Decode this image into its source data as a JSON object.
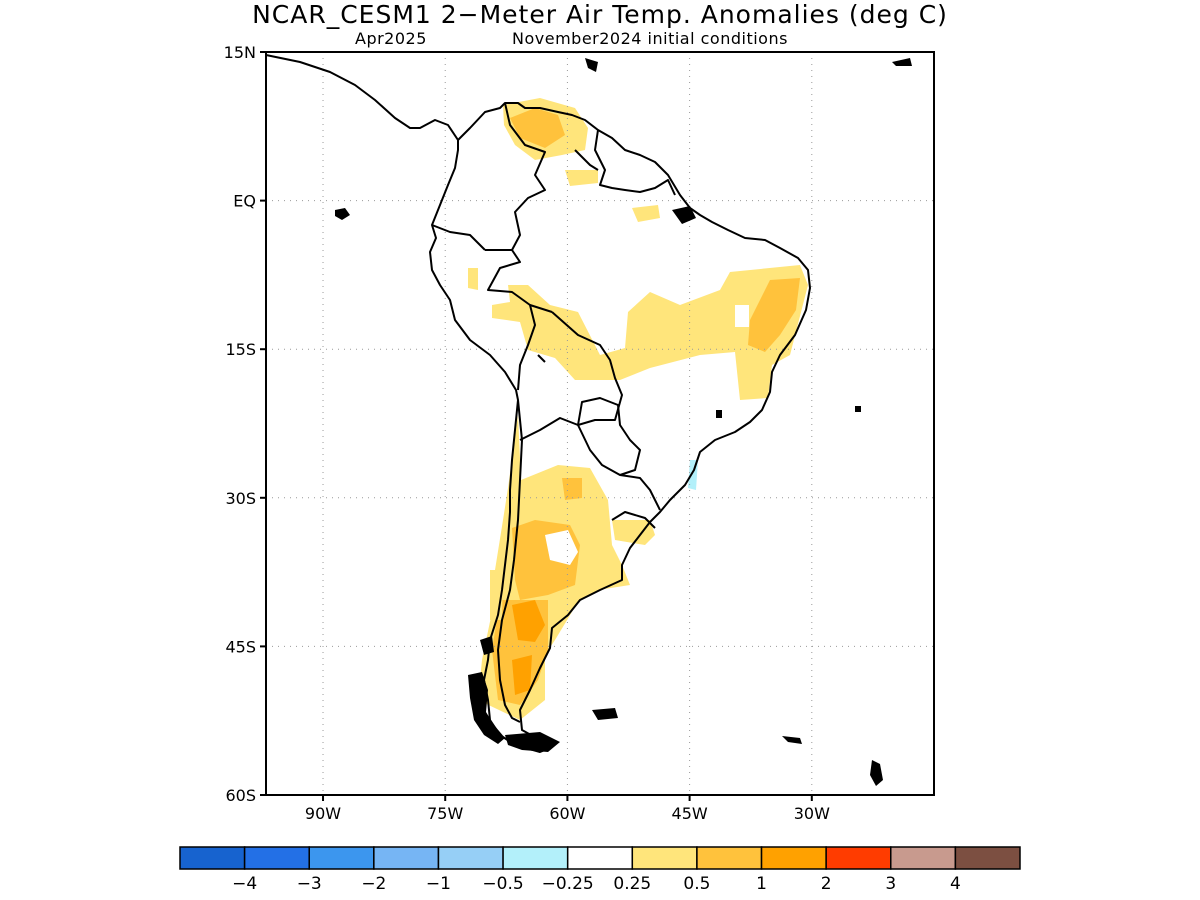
{
  "title": "NCAR_CESM1 2−Meter Air Temp. Anomalies (deg C)",
  "subtitle_left": "Apr2025",
  "subtitle_right": "November2024 initial conditions",
  "map": {
    "lon_range": [
      -97,
      -15
    ],
    "lat_range": [
      -60,
      15
    ],
    "lat_ticks": [
      {
        "value": 15,
        "label": "15N"
      },
      {
        "value": 0,
        "label": "EQ"
      },
      {
        "value": -15,
        "label": "15S"
      },
      {
        "value": -30,
        "label": "30S"
      },
      {
        "value": -45,
        "label": "45S"
      },
      {
        "value": -60,
        "label": "60S"
      }
    ],
    "lon_ticks": [
      {
        "value": -90,
        "label": "90W"
      },
      {
        "value": -75,
        "label": "75W"
      },
      {
        "value": -60,
        "label": "60W"
      },
      {
        "value": -45,
        "label": "45W"
      },
      {
        "value": -30,
        "label": "30W"
      }
    ],
    "gridlines": true
  },
  "colorbar": {
    "colors": [
      "#1763cf",
      "#2370e6",
      "#3c96ee",
      "#76b5f4",
      "#96cff6",
      "#b3f0fa",
      "#ffffff",
      "#ffe57b",
      "#ffc23c",
      "#ffa100",
      "#ff3c00",
      "#c89a8e",
      "#7c4f41"
    ],
    "labels": [
      "−4",
      "−3",
      "−2",
      "−1",
      "−0.5",
      "−0.25",
      "0.25",
      "0.5",
      "1",
      "2",
      "3",
      "4"
    ]
  }
}
